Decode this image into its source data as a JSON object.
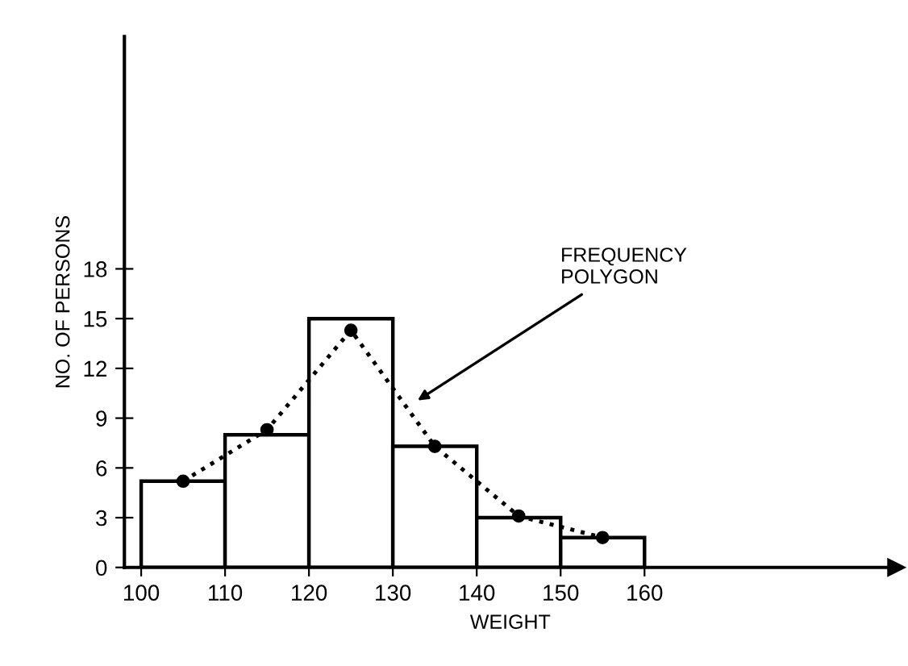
{
  "chart_data": {
    "type": "histogram",
    "xlabel": "WEIGHT",
    "ylabel": "NO. OF PERSONS",
    "bins": [
      100,
      110,
      120,
      130,
      140,
      150,
      160
    ],
    "values": [
      5.2,
      8,
      15,
      7.3,
      3,
      1.8
    ],
    "color": "#ffffff",
    "series": [
      {
        "type": "line",
        "color": "#000000",
        "x": [
          105,
          115,
          125,
          135,
          145,
          155
        ],
        "values": [
          5.2,
          8.3,
          14.3,
          7.3,
          3.1,
          1.8
        ],
        "marker": "circle",
        "line_style": "dotted"
      }
    ],
    "annotations": [
      "FREQUENCY\nPOLYGON"
    ],
    "xlim": [
      98,
      190
    ],
    "ylim": [
      0,
      32
    ],
    "xticks": [
      100,
      110,
      120,
      130,
      140,
      150,
      160
    ],
    "yticks": [
      0,
      3,
      6,
      9,
      12,
      15,
      18
    ],
    "grid": false,
    "legend": false
  }
}
